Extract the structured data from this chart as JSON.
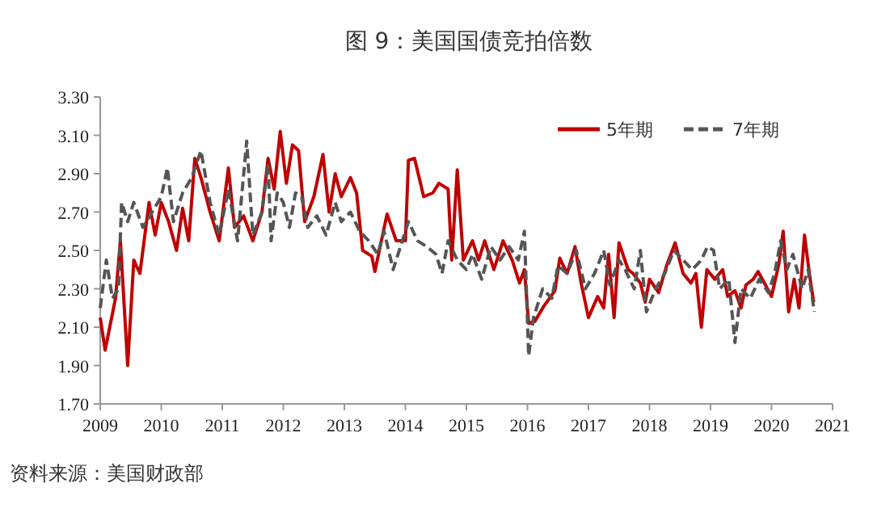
{
  "chart_data": {
    "type": "line",
    "title": "图 9：美国国债竞拍倍数",
    "annotations": [
      "资料来源：美国财政部"
    ],
    "xlim": [
      2009,
      2021
    ],
    "xticks": [
      2009,
      2010,
      2011,
      2012,
      2013,
      2014,
      2015,
      2016,
      2017,
      2018,
      2019,
      2020,
      2021
    ],
    "ylim": [
      1.7,
      3.3
    ],
    "yticks": [
      {
        "value": 1.7,
        "label": "1.70"
      },
      {
        "value": 1.9,
        "label": "1.90"
      },
      {
        "value": 2.1,
        "label": "2.10"
      },
      {
        "value": 2.3,
        "label": "2.30"
      },
      {
        "value": 2.5,
        "label": "2.50"
      },
      {
        "value": 2.7,
        "label": "2.70"
      },
      {
        "value": 2.9,
        "label": "2.90"
      },
      {
        "value": 3.1,
        "label": "3.10"
      },
      {
        "value": 3.3,
        "label": "3.30"
      }
    ],
    "grid": false,
    "legend": "top right",
    "marker": "none",
    "series": [
      {
        "name": "5年期",
        "color": "#c00000",
        "line_style": "solid",
        "x": [
          2009.0,
          2009.08,
          2009.25,
          2009.33,
          2009.45,
          2009.55,
          2009.65,
          2009.8,
          2009.9,
          2010.0,
          2010.12,
          2010.25,
          2010.35,
          2010.45,
          2010.55,
          2010.65,
          2010.8,
          2010.95,
          2011.1,
          2011.2,
          2011.35,
          2011.5,
          2011.65,
          2011.75,
          2011.85,
          2011.95,
          2012.05,
          2012.15,
          2012.25,
          2012.35,
          2012.5,
          2012.65,
          2012.75,
          2012.85,
          2012.95,
          2013.1,
          2013.2,
          2013.3,
          2013.45,
          2013.5,
          2013.7,
          2013.85,
          2014.0,
          2014.05,
          2014.15,
          2014.3,
          2014.45,
          2014.55,
          2014.7,
          2014.76,
          2014.85,
          2014.95,
          2015.1,
          2015.2,
          2015.3,
          2015.45,
          2015.6,
          2015.75,
          2015.87,
          2015.95,
          2016.02,
          2016.12,
          2016.27,
          2016.45,
          2016.53,
          2016.65,
          2016.78,
          2016.88,
          2017.0,
          2017.15,
          2017.25,
          2017.33,
          2017.42,
          2017.5,
          2017.65,
          2017.73,
          2017.85,
          2017.93,
          2018.0,
          2018.15,
          2018.28,
          2018.42,
          2018.55,
          2018.68,
          2018.76,
          2018.85,
          2018.94,
          2019.07,
          2019.2,
          2019.28,
          2019.4,
          2019.5,
          2019.58,
          2019.7,
          2019.78,
          2019.9,
          2020.0,
          2020.12,
          2020.19,
          2020.28,
          2020.37,
          2020.45,
          2020.54,
          2020.62,
          2020.69
        ],
        "values": [
          2.15,
          1.98,
          2.25,
          2.55,
          1.9,
          2.45,
          2.38,
          2.75,
          2.58,
          2.75,
          2.65,
          2.5,
          2.72,
          2.55,
          2.98,
          2.88,
          2.7,
          2.55,
          2.93,
          2.62,
          2.68,
          2.55,
          2.7,
          2.98,
          2.82,
          3.12,
          2.85,
          3.05,
          3.02,
          2.65,
          2.78,
          3.0,
          2.7,
          2.9,
          2.78,
          2.88,
          2.8,
          2.5,
          2.47,
          2.39,
          2.69,
          2.55,
          2.55,
          2.97,
          2.98,
          2.78,
          2.8,
          2.85,
          2.82,
          2.45,
          2.92,
          2.45,
          2.55,
          2.45,
          2.55,
          2.4,
          2.55,
          2.45,
          2.33,
          2.4,
          2.12,
          2.13,
          2.21,
          2.29,
          2.46,
          2.38,
          2.52,
          2.33,
          2.15,
          2.26,
          2.2,
          2.48,
          2.15,
          2.54,
          2.4,
          2.38,
          2.33,
          2.23,
          2.35,
          2.28,
          2.42,
          2.54,
          2.38,
          2.33,
          2.38,
          2.1,
          2.4,
          2.35,
          2.4,
          2.26,
          2.29,
          2.2,
          2.32,
          2.35,
          2.39,
          2.32,
          2.26,
          2.43,
          2.6,
          2.18,
          2.35,
          2.2,
          2.58,
          2.38,
          2.23
        ]
      },
      {
        "name": "7年期",
        "color": "#555555",
        "line_style": "dashed",
        "x": [
          2009.0,
          2009.1,
          2009.2,
          2009.3,
          2009.35,
          2009.45,
          2009.55,
          2009.7,
          2009.85,
          2010.0,
          2010.1,
          2010.2,
          2010.35,
          2010.5,
          2010.65,
          2010.8,
          2010.95,
          2011.1,
          2011.25,
          2011.4,
          2011.5,
          2011.65,
          2011.75,
          2011.8,
          2011.9,
          2012.0,
          2012.1,
          2012.2,
          2012.3,
          2012.4,
          2012.55,
          2012.7,
          2012.85,
          2012.95,
          2013.1,
          2013.25,
          2013.4,
          2013.55,
          2013.65,
          2013.8,
          2013.95,
          2014.05,
          2014.2,
          2014.35,
          2014.5,
          2014.6,
          2014.7,
          2014.85,
          2015.0,
          2015.1,
          2015.25,
          2015.4,
          2015.55,
          2015.7,
          2015.85,
          2015.95,
          2016.02,
          2016.1,
          2016.25,
          2016.4,
          2016.5,
          2016.65,
          2016.8,
          2016.95,
          2017.1,
          2017.25,
          2017.35,
          2017.5,
          2017.6,
          2017.75,
          2017.85,
          2017.95,
          2018.1,
          2018.25,
          2018.4,
          2018.55,
          2018.7,
          2018.85,
          2018.95,
          2019.05,
          2019.15,
          2019.3,
          2019.4,
          2019.5,
          2019.65,
          2019.8,
          2019.95,
          2020.05,
          2020.15,
          2020.25,
          2020.35,
          2020.5,
          2020.6,
          2020.7
        ],
        "values": [
          2.2,
          2.45,
          2.25,
          2.3,
          2.75,
          2.65,
          2.75,
          2.62,
          2.7,
          2.78,
          2.93,
          2.65,
          2.8,
          2.88,
          3.02,
          2.75,
          2.58,
          2.82,
          2.55,
          3.07,
          2.58,
          2.7,
          2.95,
          2.55,
          2.8,
          2.75,
          2.62,
          2.8,
          2.78,
          2.62,
          2.68,
          2.58,
          2.75,
          2.65,
          2.7,
          2.6,
          2.55,
          2.48,
          2.6,
          2.4,
          2.55,
          2.65,
          2.55,
          2.52,
          2.48,
          2.38,
          2.55,
          2.45,
          2.4,
          2.48,
          2.35,
          2.52,
          2.45,
          2.52,
          2.45,
          2.6,
          1.95,
          2.15,
          2.3,
          2.25,
          2.42,
          2.38,
          2.5,
          2.3,
          2.38,
          2.5,
          2.32,
          2.45,
          2.4,
          2.3,
          2.5,
          2.18,
          2.3,
          2.38,
          2.5,
          2.45,
          2.4,
          2.45,
          2.52,
          2.5,
          2.3,
          2.35,
          2.02,
          2.3,
          2.25,
          2.35,
          2.28,
          2.38,
          2.55,
          2.4,
          2.48,
          2.3,
          2.4,
          2.18
        ]
      }
    ]
  }
}
